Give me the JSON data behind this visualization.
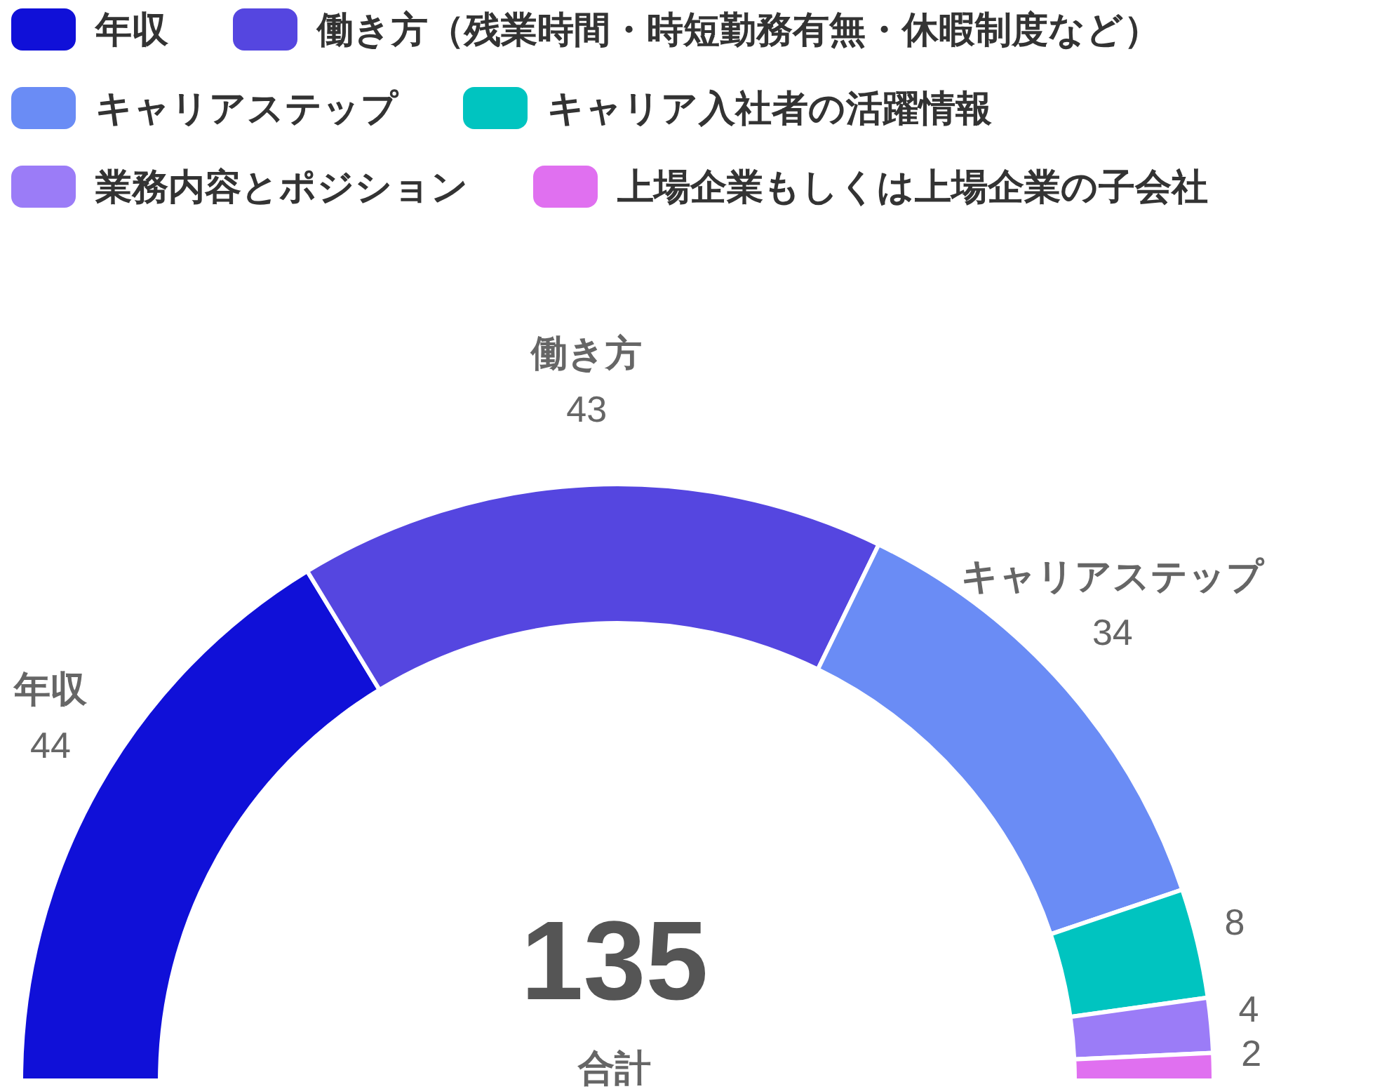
{
  "chart_data": {
    "type": "donut",
    "categories": [
      "年収",
      "働き方（残業時間・時短勤務有無・休暇制度など）",
      "キャリアステップ",
      "キャリア入社者の活躍情報",
      "業務内容とポジション",
      "上場企業もしくは上場企業の子会社"
    ],
    "values": [
      44,
      43,
      34,
      8,
      4,
      2
    ],
    "colors": [
      "#1010d8",
      "#5546e0",
      "#6a8cf5",
      "#00c4c0",
      "#9b7cf7",
      "#e070f0"
    ],
    "data_labels": true,
    "legend": "top",
    "annotations": [
      {
        "text": "年収",
        "x": "年収"
      },
      {
        "text": "働き方",
        "x": "働き方（残業時間・時短勤務有無・休暇制度など）"
      },
      {
        "text": "キャリアステップ",
        "x": "キャリアステップ"
      },
      "135",
      "合計"
    ]
  }
}
